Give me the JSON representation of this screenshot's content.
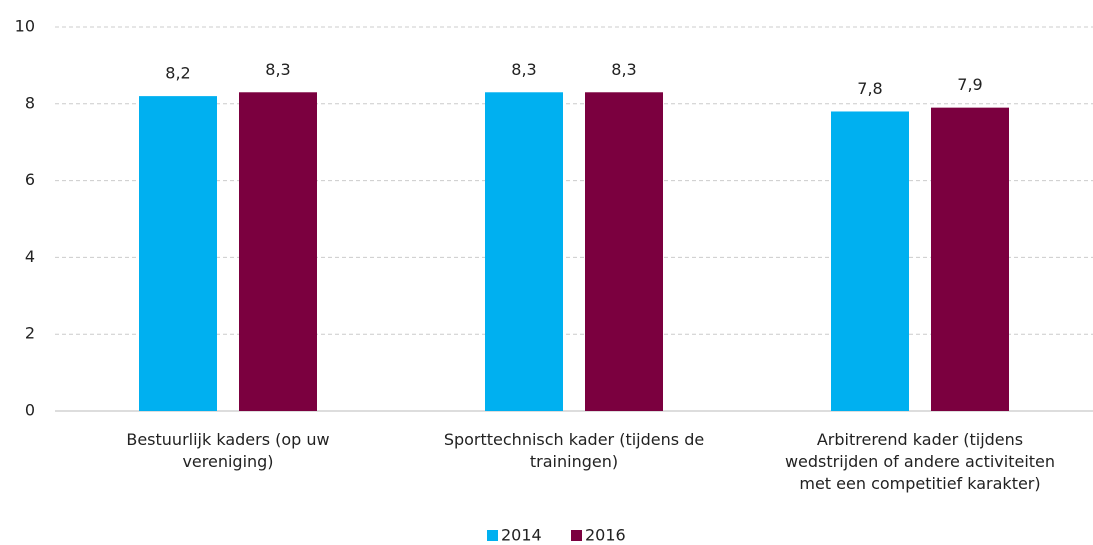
{
  "chart_data": {
    "type": "bar",
    "categories": [
      "Bestuurlijk kaders (op uw vereniging)",
      "Sporttechnisch kader (tijdens de trainingen)",
      "Arbitrerend kader (tijdens wedstrijden of andere activiteiten met een competitief karakter)"
    ],
    "series": [
      {
        "name": "2014",
        "color": "#00b0f0",
        "values": [
          8.2,
          8.3,
          7.8
        ],
        "value_labels": [
          "8,2",
          "8,3",
          "7,8"
        ]
      },
      {
        "name": "2016",
        "color": "#7b003f",
        "values": [
          8.3,
          8.3,
          7.9
        ],
        "value_labels": [
          "8,3",
          "8,3",
          "7,9"
        ]
      }
    ],
    "ylim": [
      0,
      10
    ],
    "yticks": [
      0,
      2,
      4,
      6,
      8,
      10
    ],
    "grid": true,
    "legend": "bottom"
  }
}
